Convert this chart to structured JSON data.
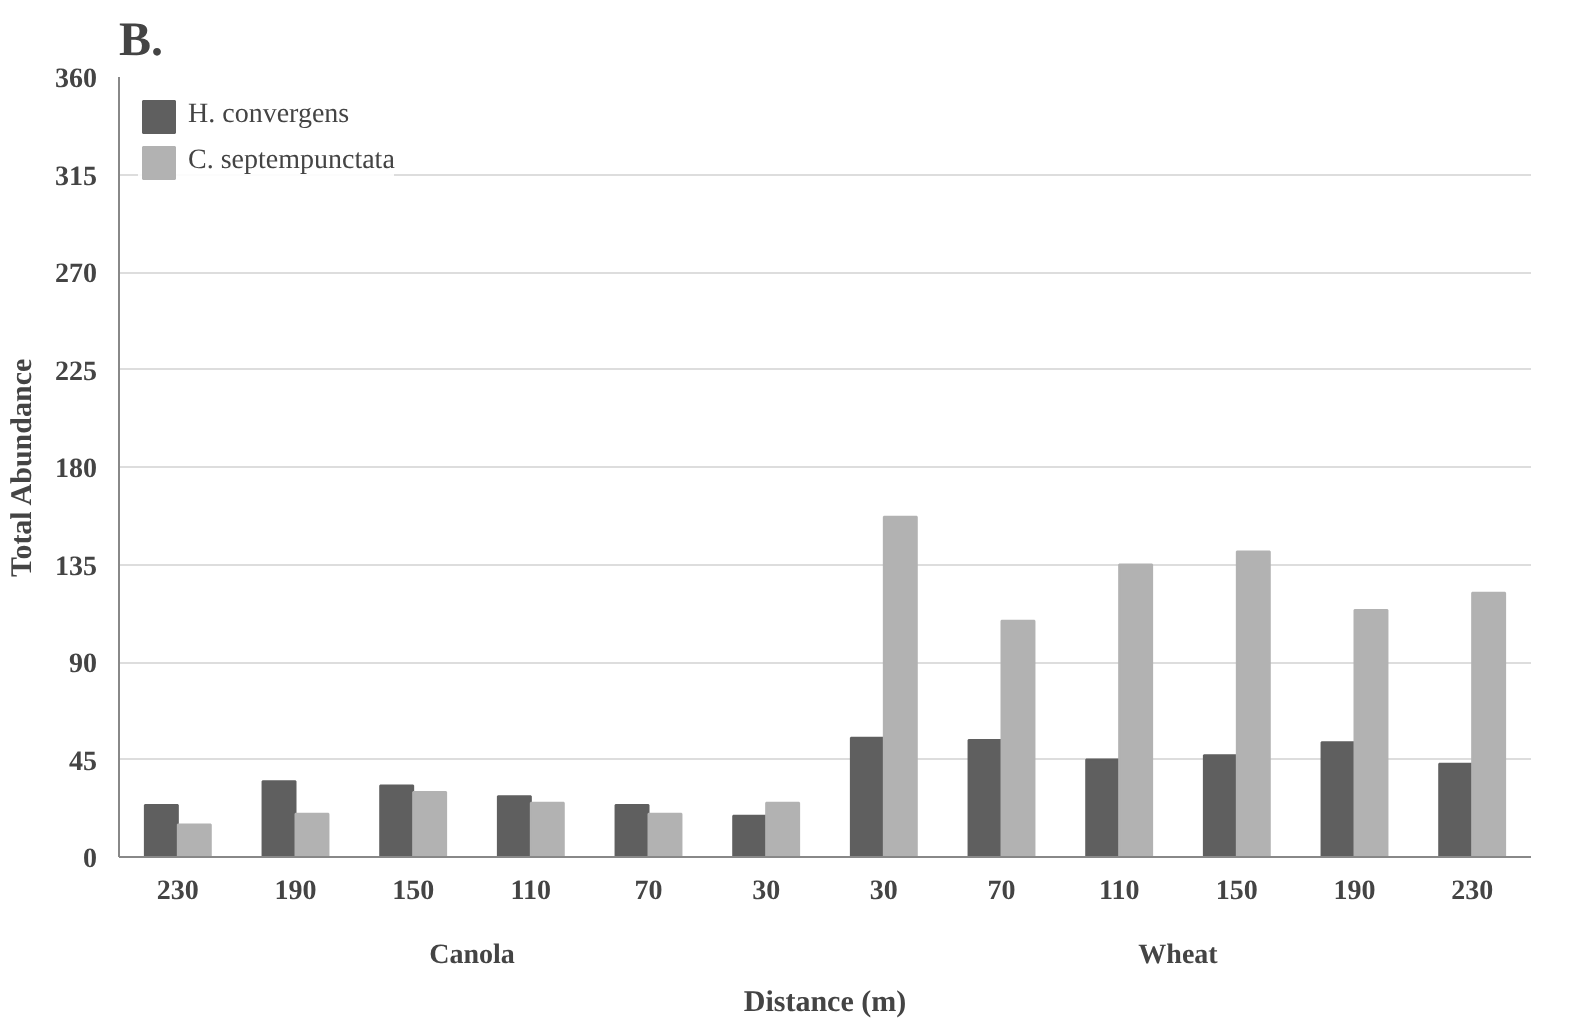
{
  "chart_data": {
    "type": "bar",
    "title": "B.",
    "xlabel": "Distance (m)",
    "ylabel": "Total Abundance",
    "categories": [
      "230",
      "190",
      "150",
      "110",
      "70",
      "30",
      "30",
      "70",
      "110",
      "150",
      "190",
      "230"
    ],
    "series": [
      {
        "name": "H. convergens",
        "color": "#5f5f5f",
        "values": [
          24,
          35,
          33,
          28,
          24,
          19,
          55,
          54,
          45,
          47,
          53,
          43
        ]
      },
      {
        "name": "C. septempunctata",
        "color": "#b2b2b2",
        "values": [
          15,
          20,
          30,
          25,
          20,
          25,
          157,
          109,
          135,
          141,
          114,
          122
        ]
      }
    ],
    "annotations": [
      "Canola",
      "Wheat"
    ],
    "ylim": [
      0,
      360
    ],
    "yticks": [
      0,
      45,
      90,
      135,
      180,
      225,
      270,
      315,
      360
    ],
    "grid": "y",
    "legend": "top left"
  }
}
